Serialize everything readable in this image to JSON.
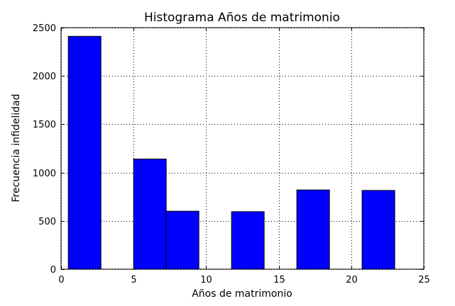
{
  "chart_data": {
    "type": "bar",
    "title": "Histograma Años de matrimonio",
    "xlabel": "Años de matrimonio",
    "ylabel": "Frecuencia infidelidad",
    "xlim": [
      0,
      25
    ],
    "ylim": [
      0,
      2500
    ],
    "xticks": [
      0,
      5,
      10,
      15,
      20,
      25
    ],
    "yticks": [
      0,
      500,
      1000,
      1500,
      2000,
      2500
    ],
    "grid": true,
    "bar_color": "#0000ff",
    "bins": [
      {
        "x0": 0.5,
        "x1": 2.75,
        "value": 2410
      },
      {
        "x0": 5.0,
        "x1": 7.25,
        "value": 1140
      },
      {
        "x0": 7.25,
        "x1": 9.5,
        "value": 600
      },
      {
        "x0": 11.75,
        "x1": 14.0,
        "value": 595
      },
      {
        "x0": 16.25,
        "x1": 18.5,
        "value": 820
      },
      {
        "x0": 20.75,
        "x1": 23.0,
        "value": 815
      }
    ]
  }
}
